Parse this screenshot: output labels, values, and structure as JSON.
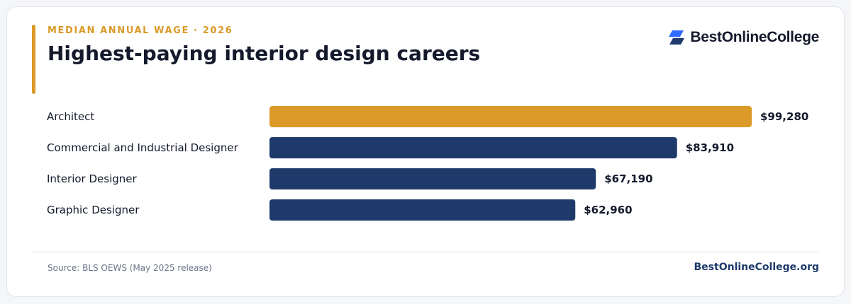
{
  "header": {
    "eyebrow": "MEDIAN ANNUAL WAGE · 2026",
    "title": "Highest-paying interior design careers"
  },
  "brand": {
    "name": "BestOnlineCollege",
    "logo_icon": "parallelogram-logo-icon"
  },
  "colors": {
    "accent": "#DB9A28",
    "navy": "#1E3A6B",
    "title_text": "#141A2C",
    "muted_text": "#6B7386"
  },
  "chart_data": {
    "type": "bar",
    "orientation": "horizontal",
    "categories": [
      "Architect",
      "Commercial and Industrial Designer",
      "Interior Designer",
      "Graphic Designer"
    ],
    "values": [
      99280,
      83910,
      67190,
      62960
    ],
    "value_labels": [
      "$99,280",
      "$83,910",
      "$67,190",
      "$62,960"
    ],
    "highlight_index": 0,
    "xlim": [
      0,
      99280
    ],
    "grid": false,
    "legend": "none"
  },
  "footer": {
    "source": "Source: BLS OEWS (May 2025 release)",
    "site": "BestOnlineCollege.org"
  }
}
